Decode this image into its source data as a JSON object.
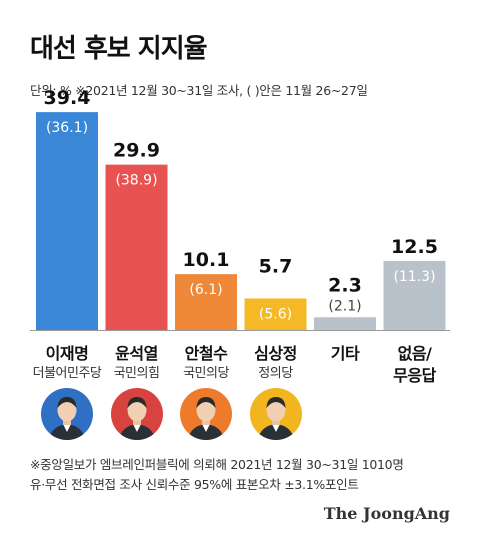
{
  "header": {
    "title": "대선 후보 지지율",
    "unit_note": "단위: %  ※2021년 12월 30~31일 조사, ( )안은 11월 26~27일"
  },
  "chart_data": {
    "type": "bar",
    "categories": [
      "이재명",
      "윤석열",
      "안철수",
      "심상정",
      "기타",
      "없음/무응답"
    ],
    "series": [
      {
        "name": "2021년 12월 30~31일",
        "values": [
          39.4,
          29.9,
          10.1,
          5.7,
          2.3,
          12.5
        ]
      },
      {
        "name": "11월 26~27일",
        "values": [
          36.1,
          38.9,
          6.1,
          5.6,
          2.1,
          11.3
        ]
      }
    ],
    "current_labels": [
      "39.4",
      "29.9",
      "10.1",
      "5.7",
      "2.3",
      "12.5"
    ],
    "previous_labels": [
      "(36.1)",
      "(38.9)",
      "(6.1)",
      "(5.6)",
      "(2.1)",
      "(11.3)"
    ],
    "colors": [
      "#3a87d8",
      "#e85351",
      "#f0883a",
      "#f5b928",
      "#b9c2cb",
      "#b9c2cb"
    ],
    "ylim": [
      0,
      45
    ]
  },
  "candidates": [
    {
      "name": "이재명",
      "party": "더불어민주당",
      "avatar_color": "#2f6fc4",
      "has_avatar": true
    },
    {
      "name": "윤석열",
      "party": "국민의힘",
      "avatar_color": "#d9433f",
      "has_avatar": true
    },
    {
      "name": "안철수",
      "party": "국민의당",
      "avatar_color": "#ee7b2c",
      "has_avatar": true
    },
    {
      "name": "심상정",
      "party": "정의당",
      "avatar_color": "#f1b51f",
      "has_avatar": true
    },
    {
      "name": "기타",
      "party": ""
    },
    {
      "name": "없음/",
      "name2": "무응답",
      "party": ""
    }
  ],
  "footnote": {
    "line1": "※중앙일보가 엠브레인퍼블릭에 의뢰해 2021년 12월 30~31일 1010명",
    "line2": "유·무선 전화면접 조사 신뢰수준 95%에 표본오차 ±3.1%포인트"
  },
  "brand": "The JoongAng"
}
